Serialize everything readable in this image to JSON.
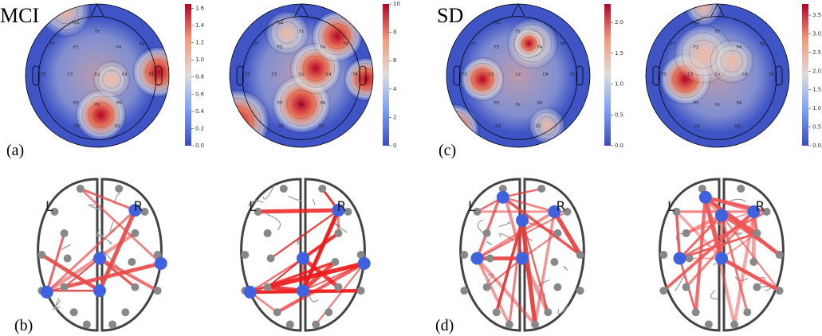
{
  "labels": {
    "mci": "MCI",
    "sd": "SD",
    "a": "(a)",
    "b": "(b)",
    "c": "(c)",
    "d": "(d)"
  },
  "electrode_labels": [
    "Fp1",
    "Fz",
    "F7",
    "F3",
    "F4",
    "F8",
    "T3",
    "C3",
    "Cz",
    "C4",
    "T4",
    "P3",
    "Pz",
    "P4",
    "O1",
    "O2"
  ],
  "brain_labels": {
    "left": "L",
    "right": "R"
  },
  "colorbars": [
    {
      "lim": [
        0,
        1.65
      ],
      "ticks": [
        {
          "value": 0,
          "label": "0.0"
        },
        {
          "value": 0.2,
          "label": "0.2"
        },
        {
          "value": 0.4,
          "label": "0.4"
        },
        {
          "value": 0.6,
          "label": "0.6"
        },
        {
          "value": 0.8,
          "label": "0.8"
        },
        {
          "value": 1,
          "label": "1.0"
        },
        {
          "value": 1.2,
          "label": "1.2"
        },
        {
          "value": 1.4,
          "label": "1.4"
        },
        {
          "value": 1.6,
          "label": "1.6"
        }
      ]
    },
    {
      "lim": [
        0,
        10
      ],
      "ticks": [
        0,
        2,
        4,
        6,
        8,
        10
      ]
    },
    {
      "lim": [
        0,
        2.3
      ],
      "ticks": [
        {
          "value": 0,
          "label": "0.0"
        },
        {
          "value": 0.5,
          "label": "0.5"
        },
        {
          "value": 1,
          "label": "1.0"
        },
        {
          "value": 1.5,
          "label": "1.5"
        },
        {
          "value": 2,
          "label": "2.0"
        }
      ]
    },
    {
      "lim": [
        0,
        3.8
      ],
      "ticks": [
        {
          "value": 0,
          "label": "0.0"
        },
        {
          "value": 0.5,
          "label": "0.5"
        },
        {
          "value": 1,
          "label": "1.0"
        },
        {
          "value": 1.5,
          "label": "1.5"
        },
        {
          "value": 2,
          "label": "2.0"
        },
        {
          "value": 2.5,
          "label": "2.5"
        },
        {
          "value": 3,
          "label": "3.0"
        },
        {
          "value": 3.5,
          "label": "3.5"
        }
      ]
    }
  ]
}
